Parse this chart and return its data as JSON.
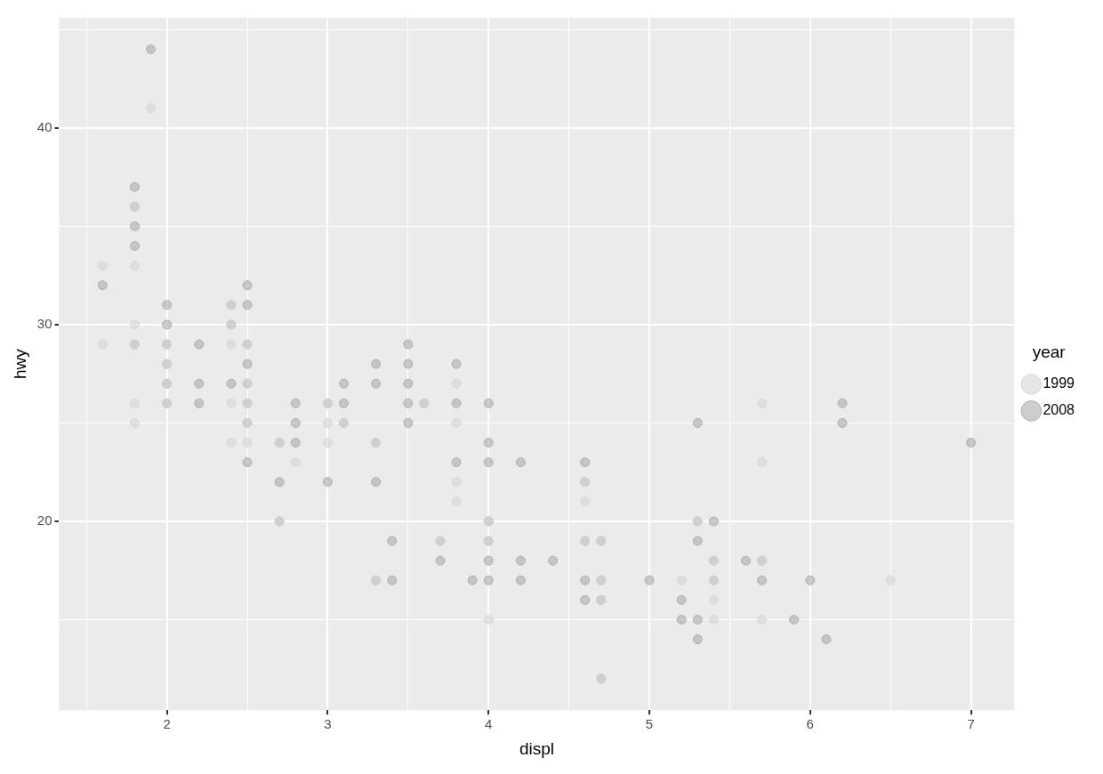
{
  "chart_data": {
    "type": "scatter",
    "xlabel": "displ",
    "ylabel": "hwy",
    "legend_title": "year",
    "legend": "right",
    "grid": true,
    "marker": "circle",
    "xlim": [
      1.33,
      7.27
    ],
    "ylim": [
      10.4,
      45.6
    ],
    "xticks": [
      {
        "value": 1.5,
        "label": null
      },
      2,
      {
        "value": 2.5,
        "label": null
      },
      3,
      {
        "value": 3.5,
        "label": null
      },
      4,
      {
        "value": 4.5,
        "label": null
      },
      5,
      {
        "value": 5.5,
        "label": null
      },
      6,
      {
        "value": 6.5,
        "label": null
      },
      7
    ],
    "yticks": [
      {
        "value": 15,
        "label": null
      },
      20,
      {
        "value": 25,
        "label": null
      },
      30,
      {
        "value": 35,
        "label": null
      },
      40,
      {
        "value": 45,
        "label": null
      }
    ],
    "series": [
      {
        "name": "1999",
        "color": "#d6d6d6",
        "x": [
          1.6,
          1.6,
          1.8,
          1.8,
          1.8,
          1.8,
          1.8,
          1.8,
          1.9,
          2,
          2,
          2,
          2,
          2.4,
          2.4,
          2.4,
          2.4,
          2.4,
          2.5,
          2.5,
          2.5,
          2.5,
          2.5,
          2.7,
          2.7,
          2.8,
          3,
          3,
          3,
          3.1,
          3.3,
          3.3,
          3.6,
          3.7,
          3.8,
          3.8,
          3.8,
          3.8,
          4,
          4,
          4,
          4.6,
          4.6,
          4.6,
          4.7,
          4.7,
          4.7,
          4.7,
          5.2,
          5.3,
          5.4,
          5.4,
          5.4,
          5.4,
          5.7,
          5.7,
          5.7,
          5.7,
          6.5
        ],
        "values": [
          33,
          29,
          36,
          33,
          30,
          29,
          26,
          25,
          41,
          29,
          28,
          27,
          26,
          31,
          30,
          29,
          26,
          24,
          29,
          27,
          26,
          25,
          24,
          24,
          20,
          23,
          26,
          25,
          24,
          25,
          24,
          17,
          26,
          19,
          27,
          25,
          22,
          21,
          20,
          19,
          15,
          22,
          19,
          21,
          19,
          17,
          16,
          12,
          17,
          20,
          18,
          17,
          16,
          15,
          26,
          23,
          18,
          15,
          17
        ]
      },
      {
        "name": "2008",
        "color": "#ababab",
        "x": [
          1.6,
          1.8,
          1.8,
          1.8,
          1.8,
          1.8,
          1.9,
          2,
          2,
          2,
          2,
          2,
          2,
          2.2,
          2.2,
          2.2,
          2.4,
          2.4,
          2.4,
          2.5,
          2.5,
          2.5,
          2.5,
          2.5,
          2.5,
          2.5,
          2.5,
          2.7,
          2.7,
          2.7,
          2.8,
          2.8,
          2.8,
          3,
          3,
          3.1,
          3.1,
          3.1,
          3.3,
          3.3,
          3.3,
          3.3,
          3.3,
          3.4,
          3.4,
          3.5,
          3.5,
          3.5,
          3.5,
          3.5,
          3.6,
          3.7,
          3.7,
          3.8,
          3.8,
          3.8,
          3.9,
          4,
          4,
          4,
          4,
          4,
          4,
          4,
          4.2,
          4.2,
          4.2,
          4.4,
          4.6,
          4.6,
          4.6,
          4.6,
          4.6,
          4.7,
          4.7,
          4.7,
          4.7,
          5,
          5.2,
          5.2,
          5.3,
          5.3,
          5.3,
          5.3,
          5.3,
          5.4,
          5.4,
          5.4,
          5.6,
          5.7,
          5.7,
          5.9,
          6,
          6.1,
          6.2,
          6.2,
          7
        ],
        "values": [
          32,
          37,
          36,
          35,
          34,
          29,
          44,
          31,
          30,
          29,
          28,
          27,
          26,
          29,
          27,
          26,
          31,
          30,
          27,
          32,
          31,
          29,
          28,
          27,
          26,
          25,
          23,
          24,
          22,
          20,
          26,
          25,
          24,
          26,
          22,
          27,
          26,
          25,
          28,
          27,
          24,
          22,
          17,
          19,
          17,
          29,
          28,
          27,
          26,
          25,
          26,
          19,
          18,
          28,
          26,
          23,
          17,
          26,
          24,
          23,
          20,
          19,
          18,
          17,
          23,
          18,
          17,
          18,
          23,
          22,
          19,
          17,
          16,
          19,
          17,
          16,
          12,
          17,
          16,
          15,
          25,
          20,
          19,
          15,
          14,
          20,
          18,
          17,
          18,
          18,
          17,
          15,
          17,
          14,
          26,
          25,
          24
        ]
      }
    ]
  }
}
